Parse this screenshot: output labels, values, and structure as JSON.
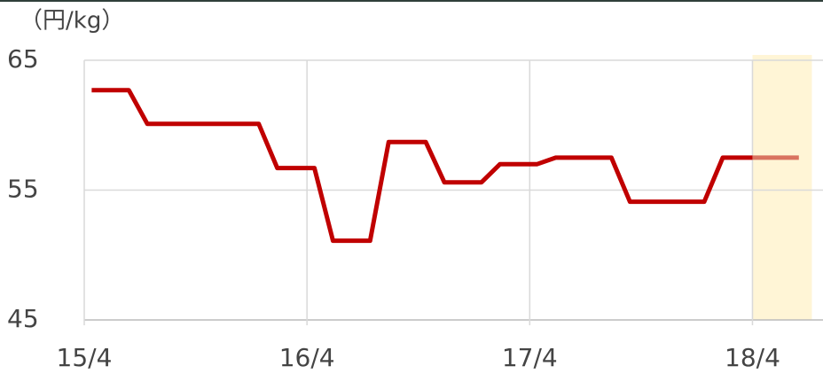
{
  "chart_data": {
    "type": "line",
    "y_axis_label": "（円/kg）",
    "xlim": [
      0,
      39.8
    ],
    "xticks": [
      {
        "value": 0,
        "label": "15/4"
      },
      {
        "value": 12,
        "label": "16/4"
      },
      {
        "value": 24,
        "label": "17/4"
      },
      {
        "value": 36,
        "label": "18/4"
      }
    ],
    "ylim": [
      45,
      65
    ],
    "yticks": [
      45,
      55,
      65
    ],
    "grid": true,
    "highlight": {
      "xrange": [
        36,
        39.2
      ],
      "color": "#fff5d6"
    },
    "series": [
      {
        "color": "#c00000",
        "x": [
          0.4,
          2.4,
          3.4,
          9.4,
          10.4,
          12.4,
          13.4,
          15.4,
          16.4,
          18.4,
          19.4,
          21.4,
          22.4,
          24.4,
          25.4,
          28.4,
          29.4,
          33.4,
          34.4,
          36
        ],
        "values": [
          62.7,
          62.7,
          60.1,
          60.1,
          56.7,
          56.7,
          51.1,
          51.1,
          58.7,
          58.7,
          55.6,
          55.6,
          57,
          57,
          57.5,
          57.5,
          54.1,
          54.1,
          57.5,
          57.5
        ]
      },
      {
        "color": "#d9735f",
        "x": [
          36,
          38.5
        ],
        "values": [
          57.5,
          57.5
        ]
      }
    ]
  }
}
